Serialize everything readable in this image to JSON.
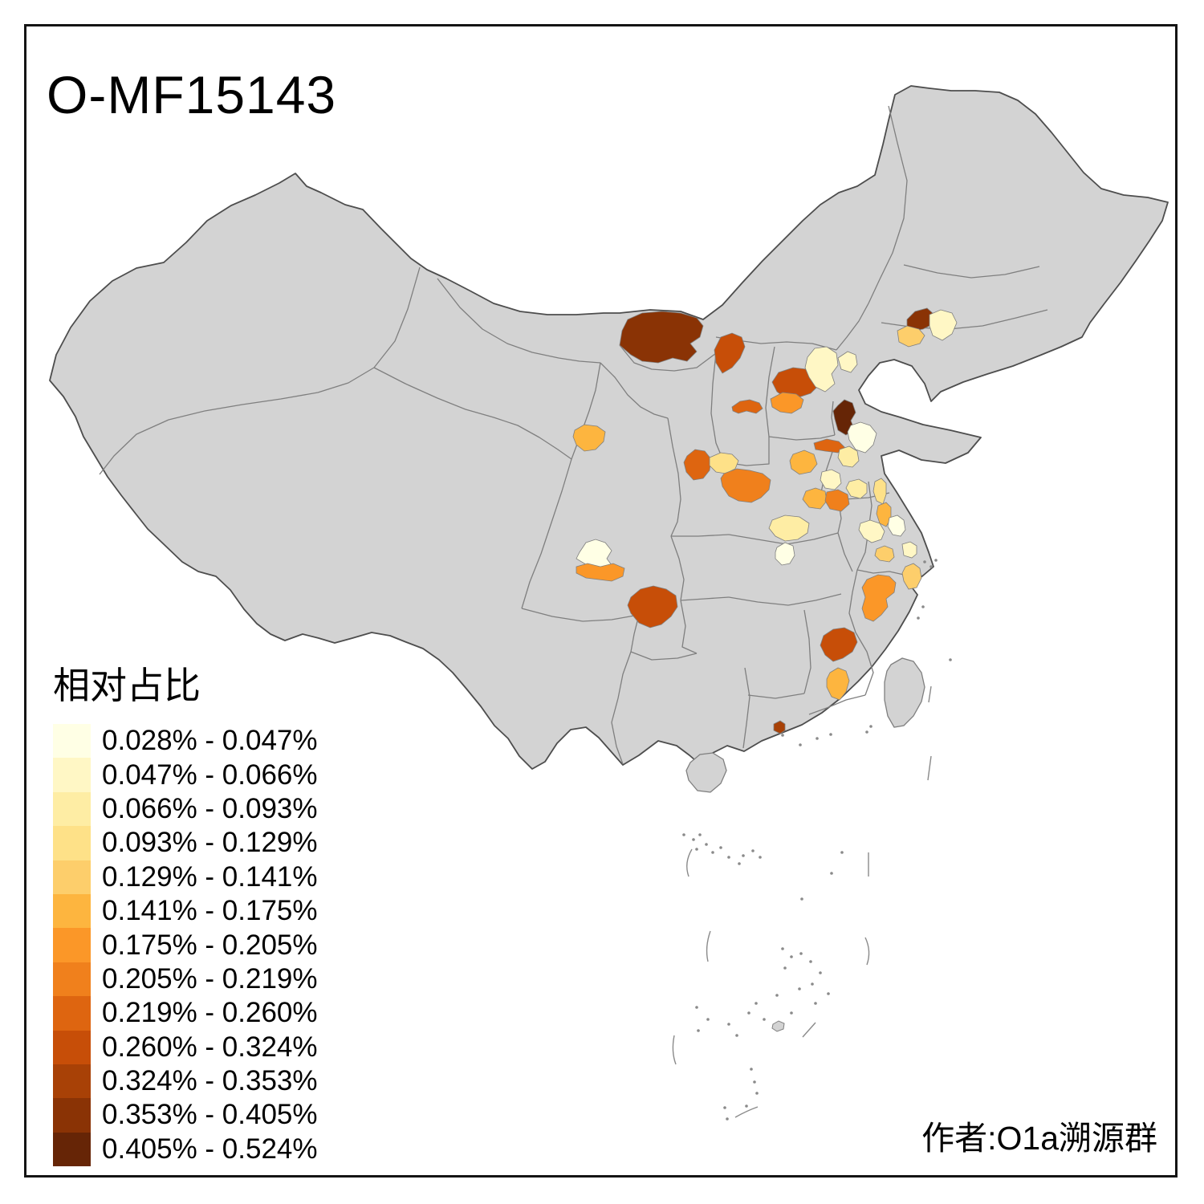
{
  "title": "O-MF15143",
  "attribution": "作者:O1a溯源群",
  "legend": {
    "title": "相对占比",
    "items": [
      {
        "range": "0.028% - 0.047%",
        "color": "#FFFFE5"
      },
      {
        "range": "0.047% - 0.066%",
        "color": "#FFF7C5"
      },
      {
        "range": "0.066% - 0.093%",
        "color": "#FEEDA4"
      },
      {
        "range": "0.093% - 0.129%",
        "color": "#FEE188"
      },
      {
        "range": "0.129% - 0.141%",
        "color": "#FDCE6B"
      },
      {
        "range": "0.141% - 0.175%",
        "color": "#FDB53F"
      },
      {
        "range": "0.175% - 0.205%",
        "color": "#FB9728"
      },
      {
        "range": "0.205% - 0.219%",
        "color": "#F0801C"
      },
      {
        "range": "0.219% - 0.260%",
        "color": "#DE6510"
      },
      {
        "range": "0.260% - 0.324%",
        "color": "#C74E08"
      },
      {
        "range": "0.324% - 0.353%",
        "color": "#A84106"
      },
      {
        "range": "0.353% - 0.405%",
        "color": "#8A3305"
      },
      {
        "range": "0.405% - 0.524%",
        "color": "#662506"
      }
    ]
  },
  "map": {
    "base_fill": "#D3D3D3",
    "province_border_color": "#7F7F7F",
    "outline_color": "#4D4D4D",
    "sea_color": "#FFFFFF",
    "regions": [
      {
        "id": "r1",
        "class": 12
      },
      {
        "id": "r2",
        "class": 10
      },
      {
        "id": "r3",
        "class": 10
      },
      {
        "id": "r4",
        "class": 9
      },
      {
        "id": "r5",
        "class": 7
      },
      {
        "id": "r6",
        "class": 2
      },
      {
        "id": "r7",
        "class": 2
      },
      {
        "id": "r8",
        "class": 12
      },
      {
        "id": "r9",
        "class": 2
      },
      {
        "id": "r10",
        "class": 5
      },
      {
        "id": "r11",
        "class": 13
      },
      {
        "id": "r12",
        "class": 1
      },
      {
        "id": "r13",
        "class": 9
      },
      {
        "id": "r14",
        "class": 6
      },
      {
        "id": "r15",
        "class": 3
      },
      {
        "id": "r16",
        "class": 2
      },
      {
        "id": "r17",
        "class": 3
      },
      {
        "id": "r18",
        "class": 6
      },
      {
        "id": "r19",
        "class": 8
      },
      {
        "id": "r20",
        "class": 9
      },
      {
        "id": "r21",
        "class": 4
      },
      {
        "id": "r22",
        "class": 8
      },
      {
        "id": "r23",
        "class": 6
      },
      {
        "id": "r24",
        "class": 3
      },
      {
        "id": "r25",
        "class": 1
      },
      {
        "id": "r26",
        "class": 4
      },
      {
        "id": "r27",
        "class": 6
      },
      {
        "id": "r28",
        "class": 1
      },
      {
        "id": "r29",
        "class": 2
      },
      {
        "id": "r30",
        "class": 5
      },
      {
        "id": "r31",
        "class": 2
      },
      {
        "id": "r32",
        "class": 5
      },
      {
        "id": "r33",
        "class": 7
      },
      {
        "id": "r34",
        "class": 1
      },
      {
        "id": "r35",
        "class": 7
      },
      {
        "id": "r36",
        "class": 10
      },
      {
        "id": "r37",
        "class": 10
      },
      {
        "id": "r38",
        "class": 6
      },
      {
        "id": "r39",
        "class": 11
      }
    ]
  }
}
